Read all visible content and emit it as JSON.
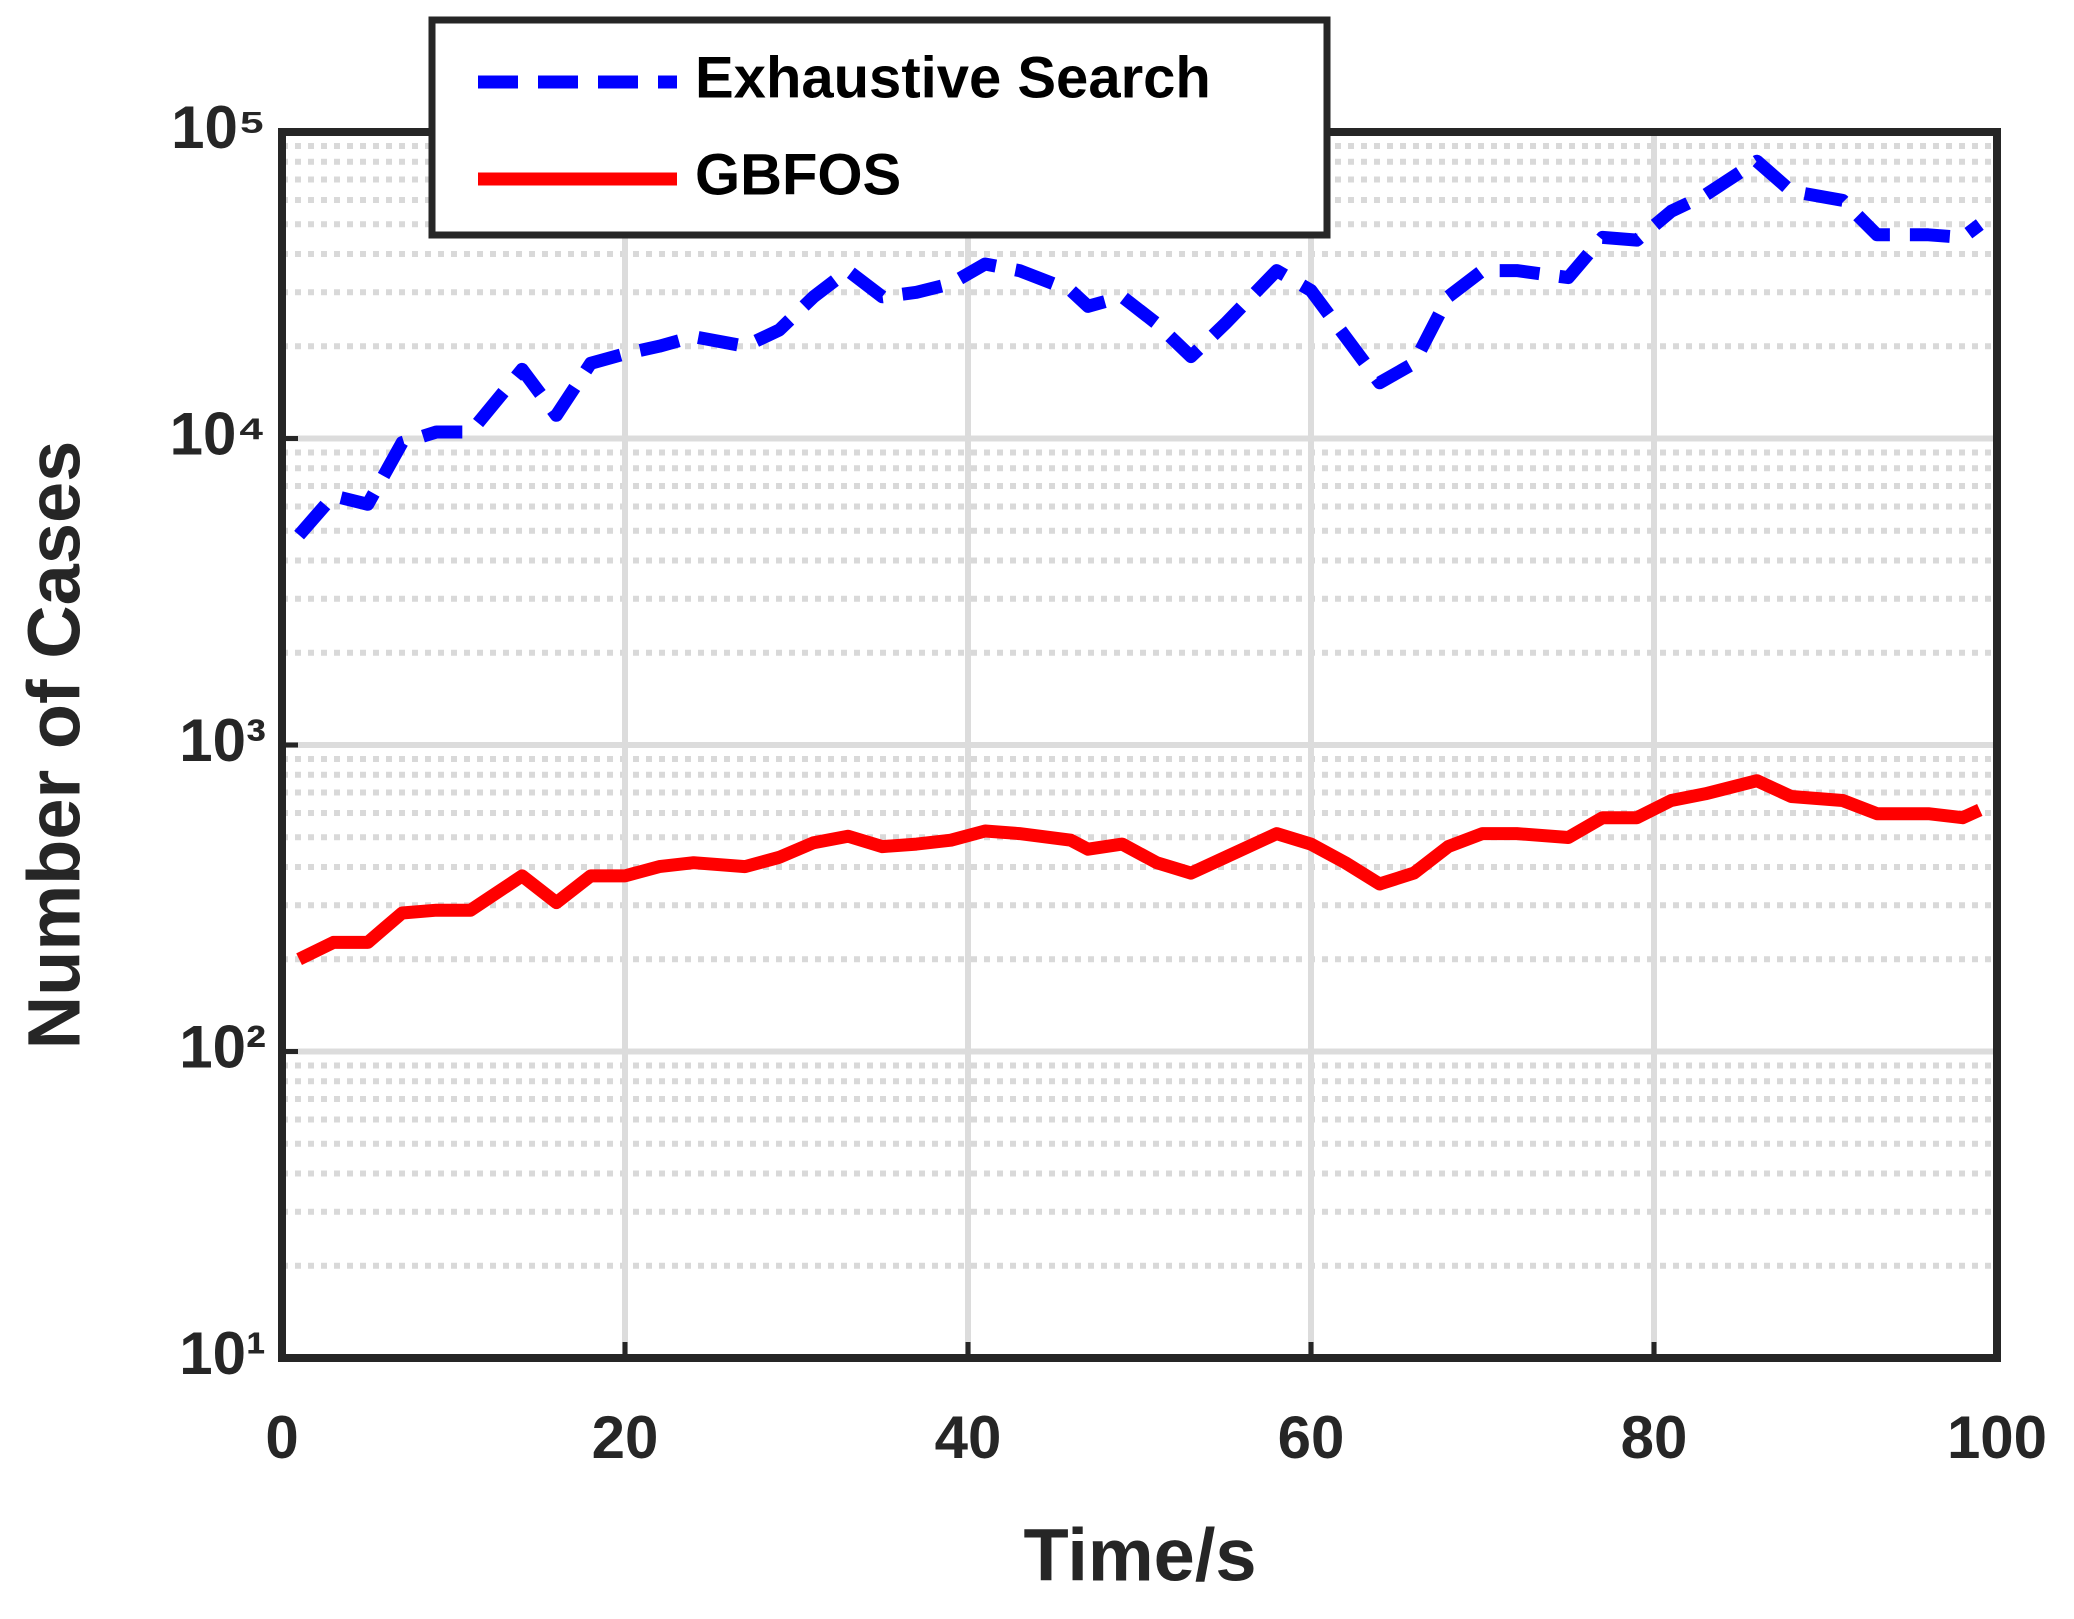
{
  "chart_data": {
    "type": "line",
    "xlabel": "Time/s",
    "ylabel": "Number of Cases",
    "x": [
      1,
      3,
      5,
      7,
      9,
      11,
      14,
      16,
      18,
      20,
      22,
      24,
      27,
      29,
      31,
      33,
      35,
      37,
      39,
      41,
      43,
      46,
      47,
      49,
      51,
      53,
      55,
      58,
      60,
      62,
      64,
      66,
      68,
      70,
      72,
      75,
      77,
      79,
      81,
      83,
      86,
      88,
      91,
      93,
      96,
      98,
      99
    ],
    "series": [
      {
        "name": "Exhaustive Search",
        "color": "#0000ff",
        "dashed": true,
        "values": [
          4840,
          6500,
          6100,
          9700,
          10500,
          10500,
          16800,
          11900,
          17600,
          18900,
          20000,
          21500,
          20000,
          22600,
          29000,
          35300,
          29000,
          30000,
          32000,
          37100,
          35300,
          30400,
          27000,
          29000,
          23700,
          18500,
          23700,
          35300,
          30400,
          21500,
          15200,
          17600,
          29000,
          35300,
          35300,
          33500,
          45300,
          44400,
          55100,
          62300,
          80300,
          64100,
          59800,
          46200,
          46200,
          45300,
          49900
        ]
      },
      {
        "name": "GBFOS",
        "color": "#ff0000",
        "dashed": false,
        "values": [
          200,
          227,
          227,
          283,
          289,
          289,
          374,
          306,
          374,
          374,
          401,
          413,
          401,
          430,
          480,
          504,
          466,
          475,
          489,
          524,
          514,
          489,
          457,
          475,
          413,
          382,
          430,
          514,
          475,
          413,
          352,
          382,
          466,
          514,
          514,
          499,
          579,
          579,
          659,
          693,
          765,
          679,
          659,
          597,
          597,
          579,
          614
        ]
      }
    ],
    "xlim": [
      0,
      100
    ],
    "xticks": [
      0,
      20,
      40,
      60,
      80,
      100
    ],
    "ylim": [
      10,
      100000
    ],
    "log_y": true,
    "yticks": [
      {
        "value": 10,
        "label": "10¹"
      },
      {
        "value": 100,
        "label": "10²"
      },
      {
        "value": 1000,
        "label": "10³"
      },
      {
        "value": 10000,
        "label": "10⁴"
      },
      {
        "value": 100000,
        "label": "10⁵"
      }
    ],
    "grid": true,
    "minor_grid": true,
    "legend": "upper center"
  }
}
